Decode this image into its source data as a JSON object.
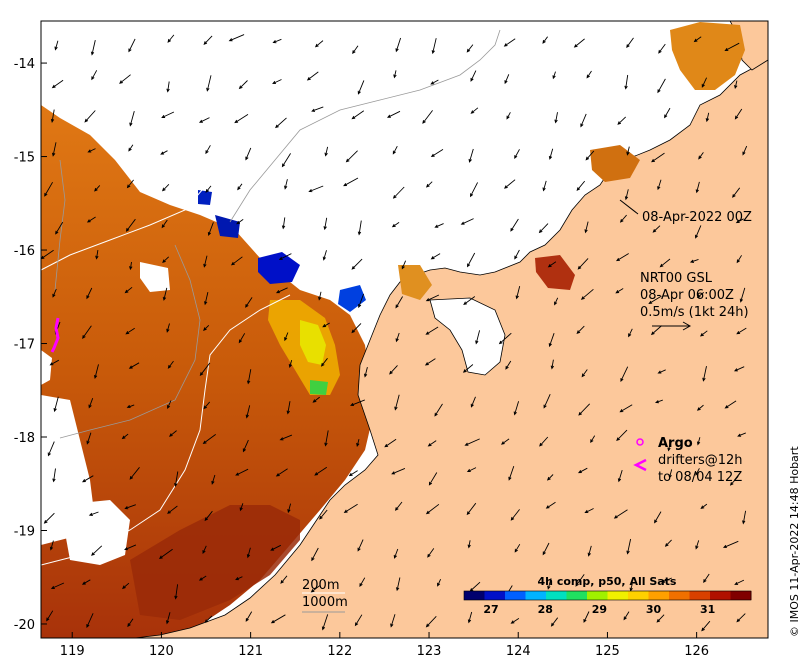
{
  "map": {
    "x_ticks": [
      "119",
      "120",
      "121",
      "122",
      "123",
      "124",
      "125",
      "126"
    ],
    "y_ticks": [
      "-14",
      "-15",
      "-16",
      "-17",
      "-18",
      "-19",
      "-20"
    ],
    "lon_range": [
      118.65,
      126.8
    ],
    "lat_range": [
      -20.15,
      -13.55
    ]
  },
  "annotations": {
    "date_label": "08-Apr-2022 00Z",
    "current_title": "NRT00 GSL",
    "current_time": "08-Apr 06:00Z",
    "current_scale": "0.5m/s (1kt 24h)",
    "argo_label": "Argo",
    "drifters_label": "drifters@12h",
    "drifters_to": "to 08/04 12Z",
    "isobath_200": "200m",
    "isobath_1000": "1000m",
    "credit": "© IMOS 11-Apr-2022 14:48 Hobart"
  },
  "colorbar": {
    "title": "4h comp, p50, All Sats",
    "ticks": [
      "27",
      "28",
      "29",
      "30",
      "31"
    ],
    "range": [
      26.5,
      31.8
    ],
    "colors": [
      "#00006e",
      "#0010c8",
      "#0060ff",
      "#00b4ff",
      "#00e0c0",
      "#20e060",
      "#a0f000",
      "#f0f000",
      "#ffd000",
      "#ffa000",
      "#f07000",
      "#d84000",
      "#b01000",
      "#800000"
    ]
  },
  "colors": {
    "land": "#fcc89b",
    "ocean_cloud": "#ffffff",
    "sst_warm": "#d56a0a",
    "sst_hot": "#a8320a",
    "sst_mid": "#f0a000",
    "sst_cool": "#f2e000",
    "argo": "#ff00ff"
  }
}
